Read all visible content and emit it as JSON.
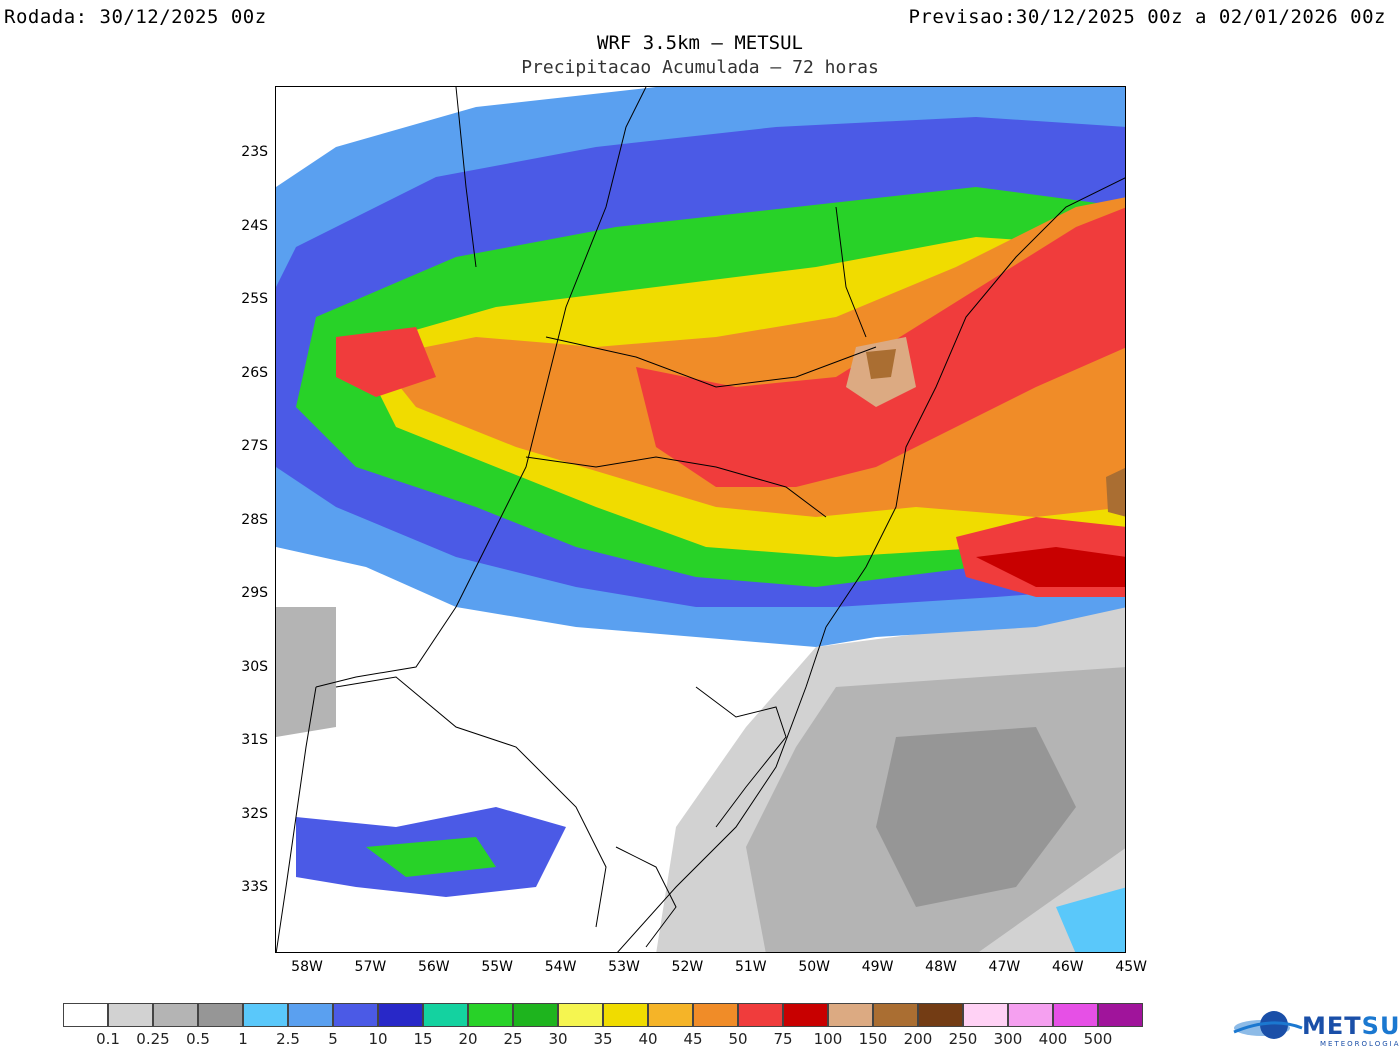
{
  "header": {
    "run_label": "Rodada:",
    "run_value": "30/12/2025 00z",
    "valid_label": "Previsao:",
    "valid_value": "30/12/2025 00z a 02/01/2026 00z",
    "title": "WRF 3.5km – METSUL",
    "subtitle": "Precipitacao Acumulada – 72 horas"
  },
  "axes": {
    "lat_labels": [
      "23S",
      "24S",
      "25S",
      "26S",
      "27S",
      "28S",
      "29S",
      "30S",
      "31S",
      "32S",
      "33S"
    ],
    "lon_labels": [
      "58W",
      "57W",
      "56W",
      "55W",
      "54W",
      "53W",
      "52W",
      "51W",
      "50W",
      "49W",
      "48W",
      "47W",
      "46W",
      "45W"
    ]
  },
  "legend": {
    "labels": [
      "0.1",
      "0.25",
      "0.5",
      "1",
      "2.5",
      "5",
      "10",
      "15",
      "20",
      "25",
      "30",
      "35",
      "40",
      "45",
      "50",
      "75",
      "100",
      "150",
      "200",
      "250",
      "300",
      "400",
      "500"
    ],
    "colors": [
      "#ffffff",
      "#d2d2d2",
      "#b4b4b4",
      "#969696",
      "#5ac8fa",
      "#5aa0f0",
      "#4b5ae6",
      "#2828c8",
      "#14d2a0",
      "#28d228",
      "#1eb41e",
      "#f5f550",
      "#f0dc00",
      "#f5b428",
      "#f08c28",
      "#f03c3c",
      "#c80000",
      "#dcaa82",
      "#aa6e32",
      "#733c14",
      "#ffd2f5",
      "#f5a0f0",
      "#e650e6",
      "#a0149b"
    ]
  },
  "logo": {
    "brand_a": "MET",
    "brand_b": "SUL",
    "tagline": "METEOROLOGIA"
  }
}
